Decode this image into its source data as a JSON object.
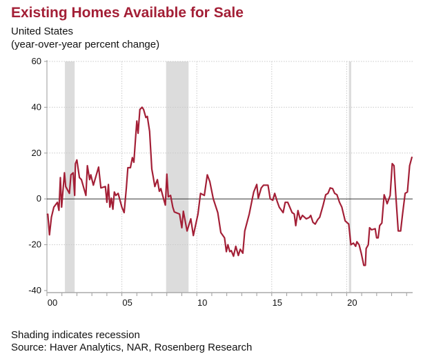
{
  "chart_data": {
    "type": "line",
    "title": "Existing Homes Available for Sale",
    "subtitle": "United States",
    "ylabel": "(year-over-year percent change)",
    "xlabel": "",
    "ylim": [
      -40,
      60
    ],
    "yticks": [
      -40,
      -20,
      0,
      20,
      40,
      60
    ],
    "xlim": [
      2000,
      2024.4
    ],
    "xticks": [
      {
        "year": 2000,
        "label": "00"
      },
      {
        "year": 2005,
        "label": "05"
      },
      {
        "year": 2010,
        "label": "10"
      },
      {
        "year": 2015,
        "label": "15"
      },
      {
        "year": 2020,
        "label": "20"
      }
    ],
    "grid": true,
    "line_color": "#a31f36",
    "recession_color": "#dcdcdc",
    "recessions": [
      [
        2001.2,
        2001.85
      ],
      [
        2007.95,
        2009.45
      ],
      [
        2020.15,
        2020.3
      ]
    ],
    "series": [
      {
        "name": "Existing Homes Available for Sale",
        "x": [
          2000.0,
          2000.06,
          2000.17,
          2000.3,
          2000.46,
          2000.7,
          2000.8,
          2000.9,
          2000.98,
          2001.17,
          2001.25,
          2001.5,
          2001.6,
          2001.75,
          2001.85,
          2001.9,
          2002.0,
          2002.17,
          2002.3,
          2002.6,
          2002.7,
          2002.85,
          2002.93,
          2003.1,
          2003.45,
          2003.6,
          2003.9,
          2004.0,
          2004.1,
          2004.2,
          2004.3,
          2004.4,
          2004.5,
          2004.6,
          2004.75,
          2005.0,
          2005.15,
          2005.3,
          2005.4,
          2005.57,
          2005.7,
          2005.8,
          2005.93,
          2006.0,
          2006.08,
          2006.2,
          2006.35,
          2006.45,
          2006.6,
          2006.7,
          2006.85,
          2007.0,
          2007.1,
          2007.2,
          2007.37,
          2007.5,
          2007.6,
          2007.77,
          2007.9,
          2008.0,
          2008.1,
          2008.25,
          2008.4,
          2008.5,
          2008.85,
          2009.0,
          2009.1,
          2009.35,
          2009.6,
          2009.77,
          2010.08,
          2010.25,
          2010.5,
          2010.7,
          2010.87,
          2011.1,
          2011.4,
          2011.6,
          2011.85,
          2011.97,
          2012.07,
          2012.2,
          2012.3,
          2012.45,
          2012.6,
          2012.77,
          2012.9,
          2013.07,
          2013.2,
          2013.5,
          2013.7,
          2013.8,
          2014.0,
          2014.1,
          2014.3,
          2014.45,
          2014.75,
          2014.9,
          2015.07,
          2015.2,
          2015.37,
          2015.5,
          2015.76,
          2015.9,
          2016.07,
          2016.36,
          2016.5,
          2016.6,
          2016.75,
          2016.9,
          2017.05,
          2017.3,
          2017.5,
          2017.6,
          2017.75,
          2017.9,
          2018.07,
          2018.2,
          2018.43,
          2018.6,
          2018.75,
          2018.9,
          2019.06,
          2019.2,
          2019.35,
          2019.52,
          2019.68,
          2019.9,
          2020.14,
          2020.28,
          2020.45,
          2020.6,
          2020.68,
          2020.83,
          2020.97,
          2021.14,
          2021.25,
          2021.3,
          2021.44,
          2021.53,
          2021.66,
          2021.9,
          2022.0,
          2022.1,
          2022.2,
          2022.35,
          2022.5,
          2022.6,
          2022.7,
          2022.9,
          2023.04,
          2023.16,
          2023.27,
          2023.44,
          2023.6,
          2023.73,
          2023.9,
          2024.05,
          2024.2,
          2024.36
        ],
        "values": [
          -7,
          -6.7,
          -15.7,
          -8,
          -3.6,
          -1.5,
          -5,
          9.3,
          -3.6,
          11.4,
          5.4,
          2.4,
          10.5,
          11.4,
          1.5,
          15.4,
          17,
          9.3,
          8.4,
          1.5,
          14.5,
          8.4,
          10.5,
          6,
          13.9,
          4.8,
          5.4,
          -1.5,
          6.3,
          -3.6,
          0.3,
          -4.5,
          3,
          1.5,
          2.4,
          -3.6,
          -6,
          4.8,
          13.6,
          13.6,
          18,
          16,
          28,
          34,
          28.6,
          39,
          40,
          39,
          35.5,
          36,
          29.5,
          13,
          9.3,
          5.4,
          8.4,
          3.3,
          4.5,
          0.3,
          -2.7,
          10.8,
          0.9,
          1.5,
          -3.6,
          -5.7,
          -6.6,
          -12.6,
          -5.4,
          -14,
          -8.7,
          -16,
          -6.6,
          2.4,
          1.5,
          10.5,
          7.5,
          0,
          -6,
          -14.7,
          -17,
          -23,
          -20,
          -23,
          -22.6,
          -25,
          -20.7,
          -24.7,
          -22,
          -23.7,
          -14,
          -6.6,
          0,
          3,
          6.3,
          0.3,
          4.8,
          6,
          6,
          0,
          -0.6,
          2.4,
          -1.2,
          -3.6,
          -6,
          -1.5,
          -1.5,
          -6,
          -6.6,
          -11.7,
          -5.1,
          -9,
          -7.2,
          -8.7,
          -8.1,
          -7.2,
          -10.2,
          -11,
          -9,
          -8,
          -2.7,
          1.8,
          2.4,
          4.8,
          4.5,
          2.4,
          1.8,
          -1.5,
          -3.6,
          -9.6,
          -11,
          -20,
          -19.3,
          -20.7,
          -18.7,
          -20,
          -23.7,
          -29,
          -29,
          -21.7,
          -20,
          -12.6,
          -13.5,
          -13,
          -17,
          -17,
          -11.7,
          -10.5,
          1.8,
          0,
          -2.1,
          1.5,
          15.4,
          14.5,
          2.4,
          -14,
          -14,
          -6.6,
          2.4,
          3,
          14.5,
          18.4
        ]
      }
    ],
    "notes": [
      "Shading indicates recession",
      "Source: Haver Analytics, NAR, Rosenberg Research"
    ]
  }
}
